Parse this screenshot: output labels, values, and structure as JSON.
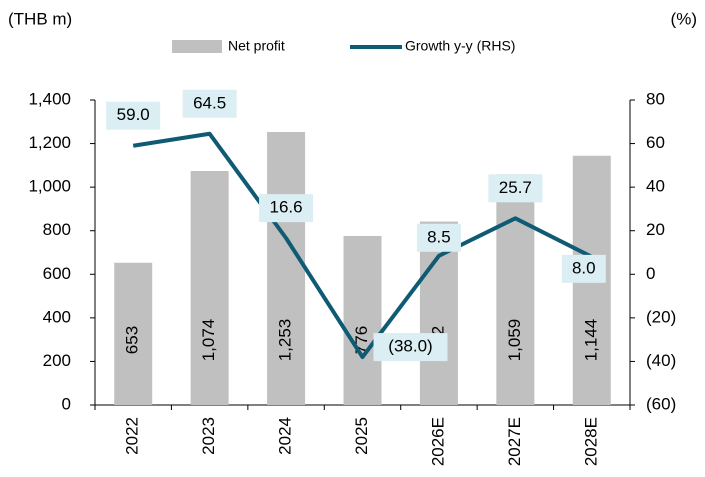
{
  "chart_data": {
    "type": "bar-line",
    "y_label": "(THB m)",
    "y2_label": "(%)",
    "categories": [
      "2022",
      "2023",
      "2024",
      "2025",
      "2026E",
      "2027E",
      "2028E"
    ],
    "series": [
      {
        "name": "Net profit",
        "type": "bar",
        "color": "#c0c0c0",
        "values": [
          653,
          1074,
          1253,
          776,
          842,
          1059,
          1144
        ],
        "value_labels": [
          "653",
          "1,074",
          "1,253",
          "776",
          "842",
          "1,059",
          "1,144"
        ]
      },
      {
        "name": "Growth y-y (RHS)",
        "type": "line",
        "axis": "y2",
        "color": "#0f5b74",
        "values": [
          59.0,
          64.5,
          16.6,
          -38.0,
          8.5,
          25.7,
          8.0
        ],
        "value_labels": [
          "59.0",
          "64.5",
          "16.6",
          "(38.0)",
          "8.5",
          "25.7",
          "8.0"
        ]
      }
    ],
    "ylim": [
      0,
      1400
    ],
    "yticks": [
      0,
      200,
      400,
      600,
      800,
      {
        "value": 1000,
        "label": "1,000"
      },
      {
        "value": 1200,
        "label": "1,200"
      },
      {
        "value": 1400,
        "label": "1,400"
      }
    ],
    "y2lim": [
      -60,
      80
    ],
    "y2ticks": [
      {
        "value": -60,
        "label": "(60)"
      },
      {
        "value": -40,
        "label": "(40)"
      },
      {
        "value": -20,
        "label": "(20)"
      },
      0,
      20,
      40,
      60,
      80
    ],
    "legend": "top"
  }
}
